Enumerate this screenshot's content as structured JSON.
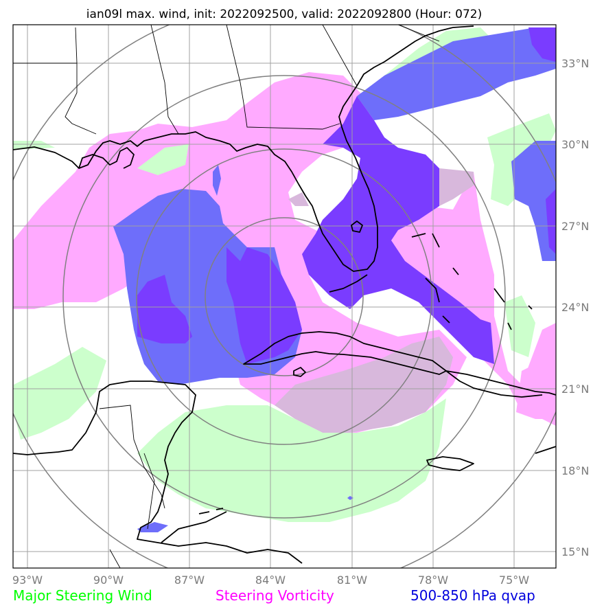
{
  "title": "ian09l max. wind, init: 2022092500, valid: 2022092800 (Hour: 072)",
  "lon_ticks": [
    "93°W",
    "90°W",
    "87°W",
    "84°W",
    "81°W",
    "78°W",
    "75°W"
  ],
  "lat_ticks": [
    "33°N",
    "30°N",
    "27°N",
    "24°N",
    "21°N",
    "18°N",
    "15°N"
  ],
  "legend": {
    "wind": {
      "label": "Major Steering Wind",
      "color": "#00ff00"
    },
    "vorticity": {
      "label": "Steering Vorticity",
      "color": "#ff00ff"
    },
    "qvap": {
      "label": "500-850 hPa qvap",
      "color": "#0000dd"
    }
  },
  "colors": {
    "wind_fill": "#ccffcc",
    "vorticity_fill": "#ffaaff",
    "qvap_fill": "#6e6efa",
    "qvap_strong_fill": "#7a3cff",
    "overlap_fill": "#d8b8dc",
    "grid": "#a0a0a0",
    "rings": "#808080",
    "coast": "#000000"
  }
}
